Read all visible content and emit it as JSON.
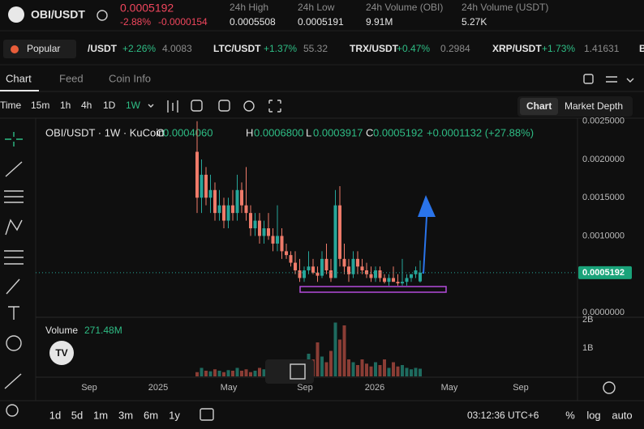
{
  "header": {
    "pair": "OBI/USDT",
    "price": "0.0005192",
    "change_pct": "-2.88%",
    "change_abs": "-0.0000154",
    "stats": [
      {
        "label": "24h High",
        "value": "0.0005508"
      },
      {
        "label": "24h Low",
        "value": "0.0005191"
      },
      {
        "label": "24h Volume (OBI)",
        "value": "9.91M"
      },
      {
        "label": "24h Volume (USDT)",
        "value": "5.27K"
      }
    ]
  },
  "ticker": {
    "popular": "Popular",
    "items": [
      {
        "pair": "/USDT",
        "change": "+2.26%",
        "price": "4.0083"
      },
      {
        "pair": "LTC/USDT",
        "change": "+1.37%",
        "price": "55.32"
      },
      {
        "pair": "TRX/USDT",
        "change": "+0.47%",
        "price": "0.2984"
      },
      {
        "pair": "XRP/USDT",
        "change": "+1.73%",
        "price": "1.41631"
      },
      {
        "pair": "B"
      }
    ]
  },
  "tabs": [
    "Chart",
    "Feed",
    "Coin Info"
  ],
  "intervals": [
    "Time",
    "15m",
    "1h",
    "4h",
    "1D",
    "1W"
  ],
  "views": [
    "Chart",
    "Market Depth"
  ],
  "chart": {
    "legend": "OBI/USDT · 1W · KuCoin",
    "ohlc": [
      {
        "k": "O",
        "v": "0.0004060"
      },
      {
        "k": "H",
        "v": "0.0006800"
      },
      {
        "k": "L",
        "v": "0.0003917"
      },
      {
        "k": "C",
        "v": "0.0005192"
      }
    ],
    "change": "+0.0001132 (+27.88%)",
    "ylim": [
      0,
      0.00255
    ],
    "yticks": [
      {
        "value": 0.0025,
        "label": "0.0025000"
      },
      {
        "value": 0.002,
        "label": "0.0020000"
      },
      {
        "value": 0.0015,
        "label": "0.0015000"
      },
      {
        "value": 0.001,
        "label": "0.0010000"
      },
      {
        "value": 0,
        "label": "0.0000000"
      }
    ],
    "last_price": {
      "value": 0.0005192,
      "label": "0.0005192"
    },
    "candles": [
      [
        0.0021,
        0.0025,
        0.0013,
        0.0015
      ],
      [
        0.0015,
        0.002,
        0.0013,
        0.0018
      ],
      [
        0.0018,
        0.0019,
        0.0014,
        0.0015
      ],
      [
        0.0015,
        0.0018,
        0.0013,
        0.0016
      ],
      [
        0.0016,
        0.0017,
        0.0012,
        0.0013
      ],
      [
        0.0013,
        0.0016,
        0.0012,
        0.0014
      ],
      [
        0.0014,
        0.0015,
        0.0011,
        0.0012
      ],
      [
        0.0012,
        0.0015,
        0.0011,
        0.0014
      ],
      [
        0.0014,
        0.0016,
        0.0012,
        0.0013
      ],
      [
        0.0013,
        0.0018,
        0.0012,
        0.0016
      ],
      [
        0.0016,
        0.0017,
        0.0013,
        0.0014
      ],
      [
        0.0014,
        0.0019,
        0.0012,
        0.0013
      ],
      [
        0.0013,
        0.0014,
        0.001,
        0.0011
      ],
      [
        0.0011,
        0.0013,
        0.001,
        0.0012
      ],
      [
        0.0012,
        0.0013,
        0.0009,
        0.001
      ],
      [
        0.001,
        0.0012,
        0.0009,
        0.0011
      ],
      [
        0.0011,
        0.0013,
        0.00095,
        0.001
      ],
      [
        0.001,
        0.0011,
        0.0008,
        0.0009
      ],
      [
        0.0009,
        0.0014,
        0.0008,
        0.001
      ],
      [
        0.001,
        0.0011,
        0.0007,
        0.0008
      ],
      [
        0.0008,
        0.0009,
        0.0007,
        0.00075
      ],
      [
        0.00075,
        0.0008,
        0.0006,
        0.00065
      ],
      [
        0.00065,
        0.0008,
        0.0005,
        0.00055
      ],
      [
        0.00055,
        0.0007,
        0.0004,
        0.00045
      ],
      [
        0.00045,
        0.0006,
        0.0004,
        0.00055
      ],
      [
        0.00055,
        0.0008,
        0.0005,
        0.0006
      ],
      [
        0.0006,
        0.0007,
        0.0005,
        0.00052
      ],
      [
        0.00052,
        0.0006,
        0.0004,
        0.00048
      ],
      [
        0.00048,
        0.0008,
        0.00045,
        0.0007
      ],
      [
        0.0007,
        0.0009,
        0.0005,
        0.00055
      ],
      [
        0.00055,
        0.0007,
        0.0004,
        0.00045
      ],
      [
        0.00045,
        0.0016,
        0.00045,
        0.0014
      ],
      [
        0.0014,
        0.00165,
        0.0006,
        0.0007
      ],
      [
        0.0007,
        0.0009,
        0.0005,
        0.0006
      ],
      [
        0.0006,
        0.0007,
        0.0004,
        0.0005
      ],
      [
        0.0005,
        0.0008,
        0.00045,
        0.0007
      ],
      [
        0.0007,
        0.0008,
        0.0005,
        0.0006
      ],
      [
        0.0006,
        0.0007,
        0.0005,
        0.00055
      ],
      [
        0.00055,
        0.00065,
        0.00045,
        0.0005
      ],
      [
        0.0005,
        0.0006,
        0.0004,
        0.00045
      ],
      [
        0.00045,
        0.0006,
        0.0004,
        0.00055
      ],
      [
        0.00055,
        0.0006,
        0.0004,
        0.00045
      ],
      [
        0.00045,
        0.0005,
        0.00038,
        0.0004
      ],
      [
        0.0004,
        0.0005,
        0.00035,
        0.00045
      ],
      [
        0.00045,
        0.0006,
        0.0004,
        0.0004
      ],
      [
        0.0004,
        0.0005,
        0.00035,
        0.00038
      ],
      [
        0.00038,
        0.0007,
        0.00035,
        0.0004
      ],
      [
        0.0004,
        0.0005,
        0.00035,
        0.00045
      ],
      [
        0.00045,
        0.0005,
        0.0004,
        0.0005
      ],
      [
        0.0005,
        0.0006,
        0.00045,
        0.00055
      ],
      [
        0.000406,
        0.00068,
        0.0003917,
        0.0005192
      ]
    ],
    "volume": {
      "title": "Volume",
      "last": "271.48M",
      "ylim": [
        0,
        2000000000
      ],
      "yticks": [
        {
          "value": 2000000000,
          "label": "2B"
        },
        {
          "value": 1000000000,
          "label": "1B"
        }
      ],
      "values": [
        150000000,
        300000000,
        200000000,
        180000000,
        250000000,
        200000000,
        150000000,
        220000000,
        200000000,
        300000000,
        200000000,
        250000000,
        150000000,
        200000000,
        300000000,
        250000000,
        200000000,
        450000000,
        600000000,
        300000000,
        250000000,
        400000000,
        500000000,
        350000000,
        300000000,
        800000000,
        600000000,
        1200000000,
        700000000,
        500000000,
        900000000,
        1900000000,
        1300000000,
        1800000000,
        600000000,
        500000000,
        400000000,
        600000000,
        450000000,
        350000000,
        500000000,
        400000000,
        600000000,
        300000000,
        500000000,
        350000000,
        400000000,
        300000000,
        250000000,
        300000000,
        271480000
      ]
    },
    "x_labels": [
      "Sep",
      "2025",
      "May",
      "Sep",
      "2026",
      "May",
      "Sep"
    ]
  },
  "footer": {
    "ranges": [
      "1d",
      "5d",
      "1m",
      "3m",
      "6m",
      "1y"
    ],
    "clock": "03:12:36 UTC+6",
    "options": [
      "%",
      "log",
      "auto"
    ]
  }
}
